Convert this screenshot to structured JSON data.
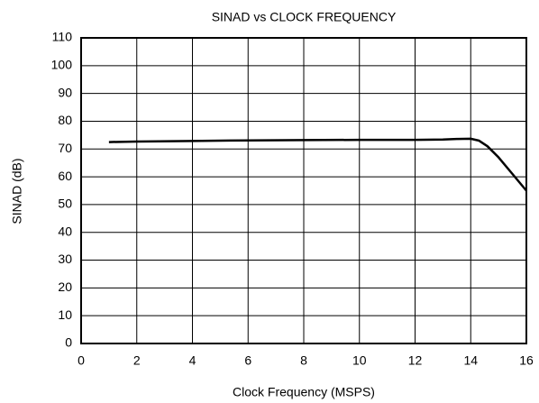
{
  "chart_data": {
    "type": "line",
    "title": "SINAD vs CLOCK FREQUENCY",
    "x_label": "Clock Frequency (MSPS)",
    "y_label": "SINAD (dB)",
    "series": [
      {
        "color": "#000000",
        "x": [
          1,
          2,
          4,
          6,
          8,
          10,
          12,
          13,
          13.5,
          14,
          14.3,
          14.6,
          15,
          15.5,
          16
        ],
        "values": [
          72.5,
          72.7,
          72.9,
          73.1,
          73.2,
          73.3,
          73.3,
          73.4,
          73.6,
          73.7,
          73,
          71,
          67,
          61,
          55
        ]
      }
    ],
    "xlim": [
      0,
      16
    ],
    "xticks": [
      0,
      2,
      4,
      6,
      8,
      10,
      12,
      14,
      16
    ],
    "ylim": [
      0,
      110
    ],
    "yticks": [
      0,
      10,
      20,
      30,
      40,
      50,
      60,
      70,
      80,
      90,
      100,
      110
    ],
    "grid": true
  }
}
